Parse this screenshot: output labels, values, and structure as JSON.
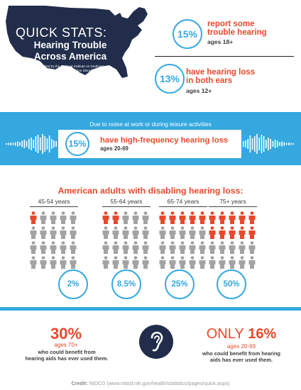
{
  "header": {
    "title": "QUICK STATS:",
    "headline_line1": "Hearing Trouble",
    "headline_line2": "Across America",
    "compiled_line1": "Compiled by the National Institute on Deafness",
    "compiled_line2": "and Other Communication Disorders"
  },
  "top_stats": [
    {
      "percent": "15%",
      "line1": "report some",
      "line2": "trouble hearing",
      "sub": "ages 18+"
    },
    {
      "percent": "13%",
      "line1": "have hearing loss",
      "line2": "in both ears",
      "sub": "ages 12+"
    }
  ],
  "noise_band": {
    "caption": "Due to noise at work or during leisure activities",
    "percent": "15%",
    "text": "have high-frequency hearing loss",
    "sub": "ages 20-69"
  },
  "disabling": {
    "title": "American adults with disabling hearing loss:",
    "groups": [
      {
        "age": "45-54 years",
        "percent": "2%",
        "share": 0.02
      },
      {
        "age": "55-64 years",
        "percent": "8.5%",
        "share": 0.085
      },
      {
        "age": "65-74 years",
        "percent": "25%",
        "share": 0.25
      },
      {
        "age": "75+ years",
        "percent": "50%",
        "share": 0.5
      }
    ]
  },
  "hearing_aids": {
    "left": {
      "percent": "30%",
      "age": "ages 70+",
      "desc_line1": "who could benefit from",
      "desc_line2": "hearing aids has ever used them."
    },
    "right": {
      "prefix": "ONLY",
      "percent": "16%",
      "age": "ages 20-69",
      "desc_line1": "who could benefit from hearing",
      "desc_line2": "aids has ever used them."
    }
  },
  "credit": {
    "label": "Credit:",
    "text": "NIDCD (www.nidcd.nih.gov/health/statistics/pages/quick.aspx)"
  },
  "colors": {
    "navy": "#212d4a",
    "blue": "#35a8e0",
    "red": "#e8492c",
    "grey_person": "#a3a3a3"
  },
  "icons": [
    "usa-map",
    "sound-wave",
    "person-icon",
    "ear-icon"
  ]
}
